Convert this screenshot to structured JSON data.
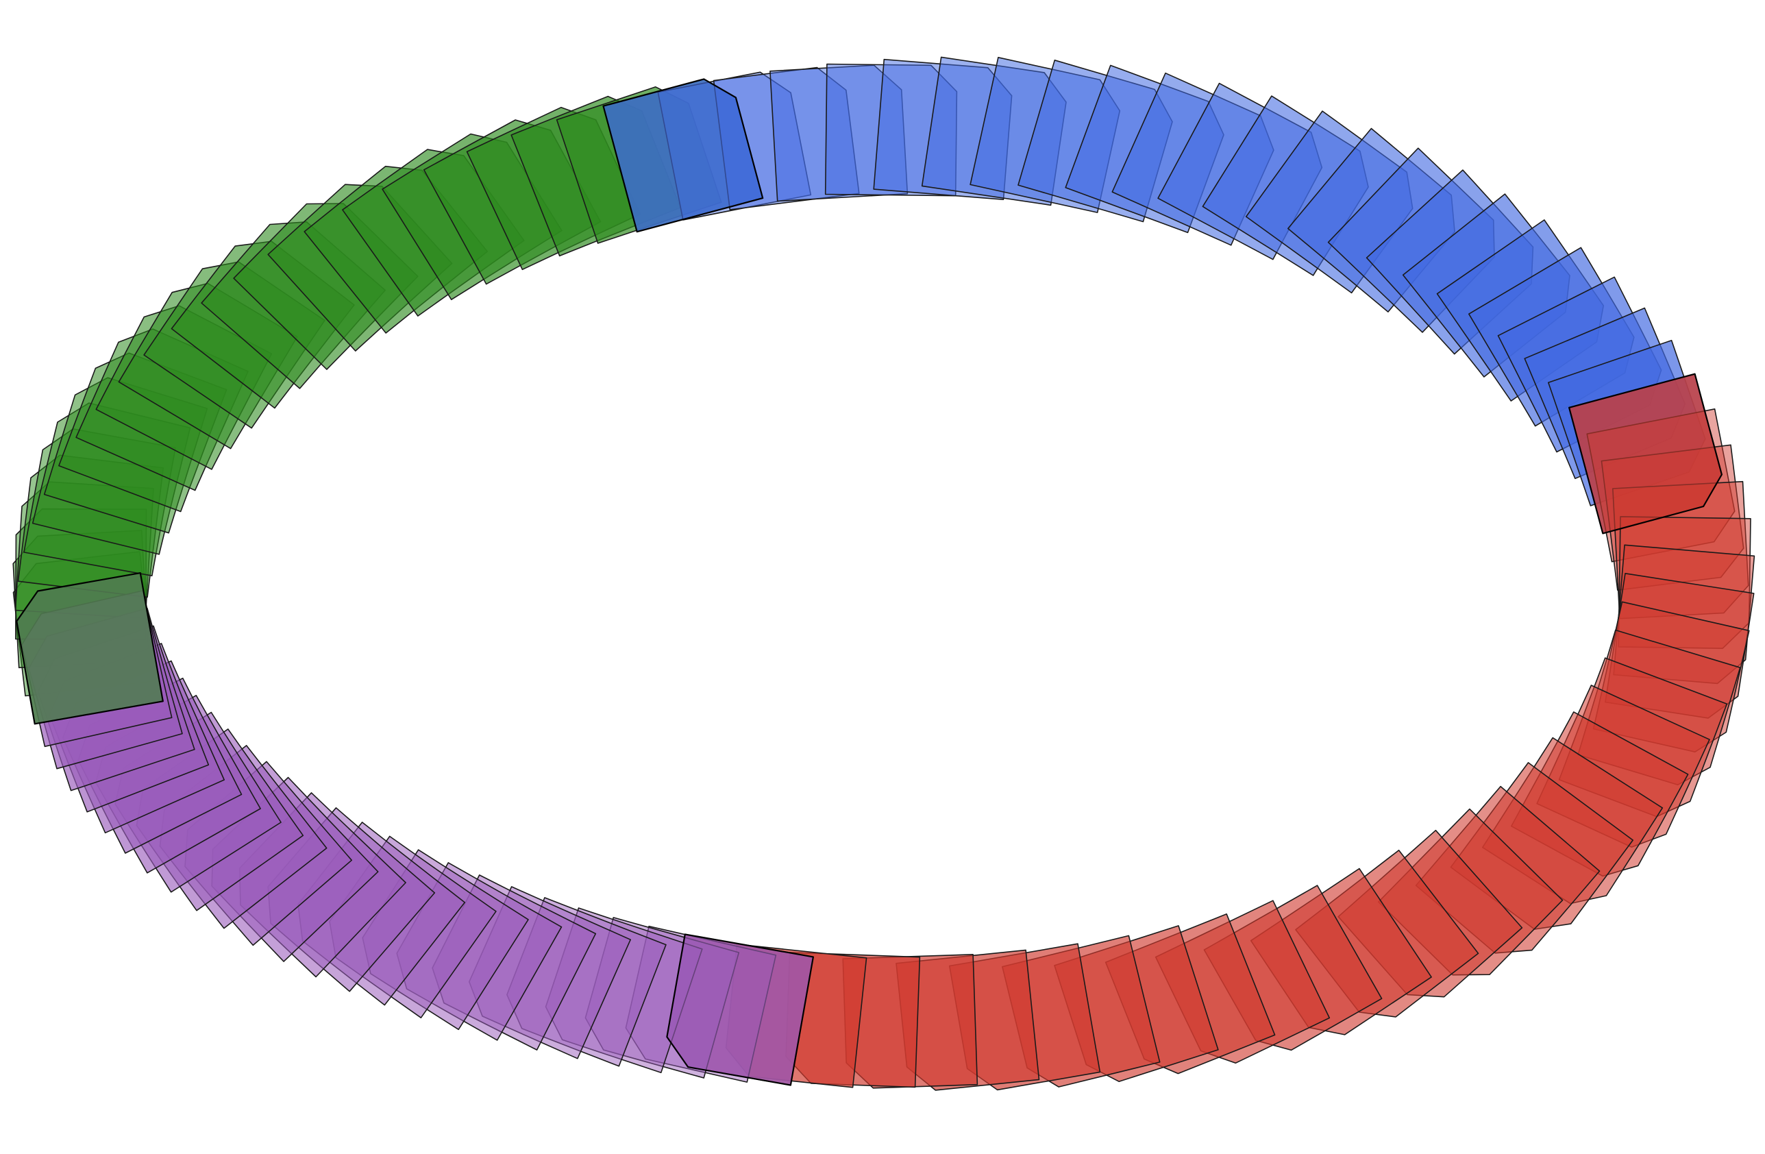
{
  "figure": {
    "description_free": true,
    "background": "#ffffff"
  },
  "colors": {
    "green": "#2e8b1f",
    "blue": "#4169e1",
    "red": "#d03a2f",
    "purple": "#9a5cbb",
    "outline": "#1a1a1a"
  },
  "segments": [
    {
      "name": "green",
      "color": "#2e8b1f",
      "count": 26
    },
    {
      "name": "blue",
      "color": "#4169e1",
      "count": 24
    },
    {
      "name": "red",
      "color": "#d03a2f",
      "count": 30
    },
    {
      "name": "purple",
      "color": "#9a5cbb",
      "count": 26
    }
  ]
}
